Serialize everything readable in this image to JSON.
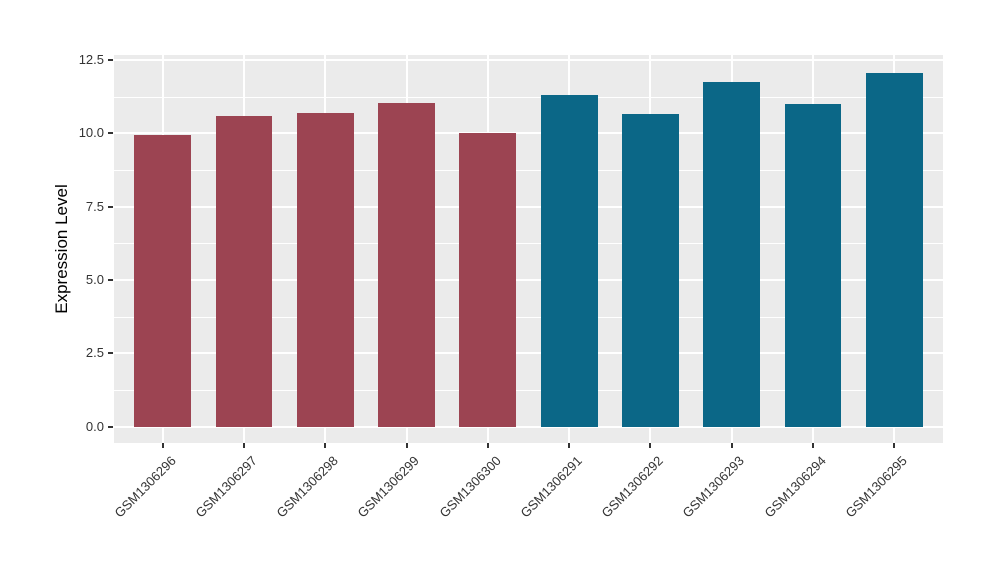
{
  "figure": {
    "background": "#FFFFFF",
    "panel_background": "#EBEBEB",
    "grid_color": "#FFFFFF",
    "axis_text_color": "#333333",
    "tick_color": "#333333"
  },
  "chart_data": {
    "type": "bar",
    "title": "",
    "xlabel": "",
    "ylabel": "Expression Level",
    "categories": [
      "GSM1306296",
      "GSM1306297",
      "GSM1306298",
      "GSM1306299",
      "GSM1306300",
      "GSM1306291",
      "GSM1306292",
      "GSM1306293",
      "GSM1306294",
      "GSM1306295"
    ],
    "values": [
      9.95,
      10.6,
      10.7,
      11.05,
      10.0,
      11.3,
      10.65,
      11.75,
      11.0,
      12.05
    ],
    "bar_colors": [
      "#9C4452",
      "#9C4452",
      "#9C4452",
      "#9C4452",
      "#9C4452",
      "#0B6787",
      "#0B6787",
      "#0B6787",
      "#0B6787",
      "#0B6787"
    ],
    "groups": [
      {
        "name": "group-red",
        "color": "#9C4452",
        "members": [
          "GSM1306296",
          "GSM1306297",
          "GSM1306298",
          "GSM1306299",
          "GSM1306300"
        ]
      },
      {
        "name": "group-teal",
        "color": "#0B6787",
        "members": [
          "GSM1306291",
          "GSM1306292",
          "GSM1306293",
          "GSM1306294",
          "GSM1306295"
        ]
      }
    ],
    "yticks": [
      0,
      2.5,
      5,
      7.5,
      10,
      12.5
    ],
    "ytick_labels": [
      "0.0",
      "2.5",
      "5.0",
      "7.5",
      "10.0",
      "12.5"
    ],
    "minor_yticks": [
      1.25,
      3.75,
      6.25,
      8.75,
      11.25
    ],
    "ylim": [
      -0.55,
      12.67
    ],
    "bar_width_ratio": 0.7,
    "discrete_expand": 0.6,
    "grid": true,
    "legend_position": "none",
    "x_label_angle_deg": 45
  }
}
